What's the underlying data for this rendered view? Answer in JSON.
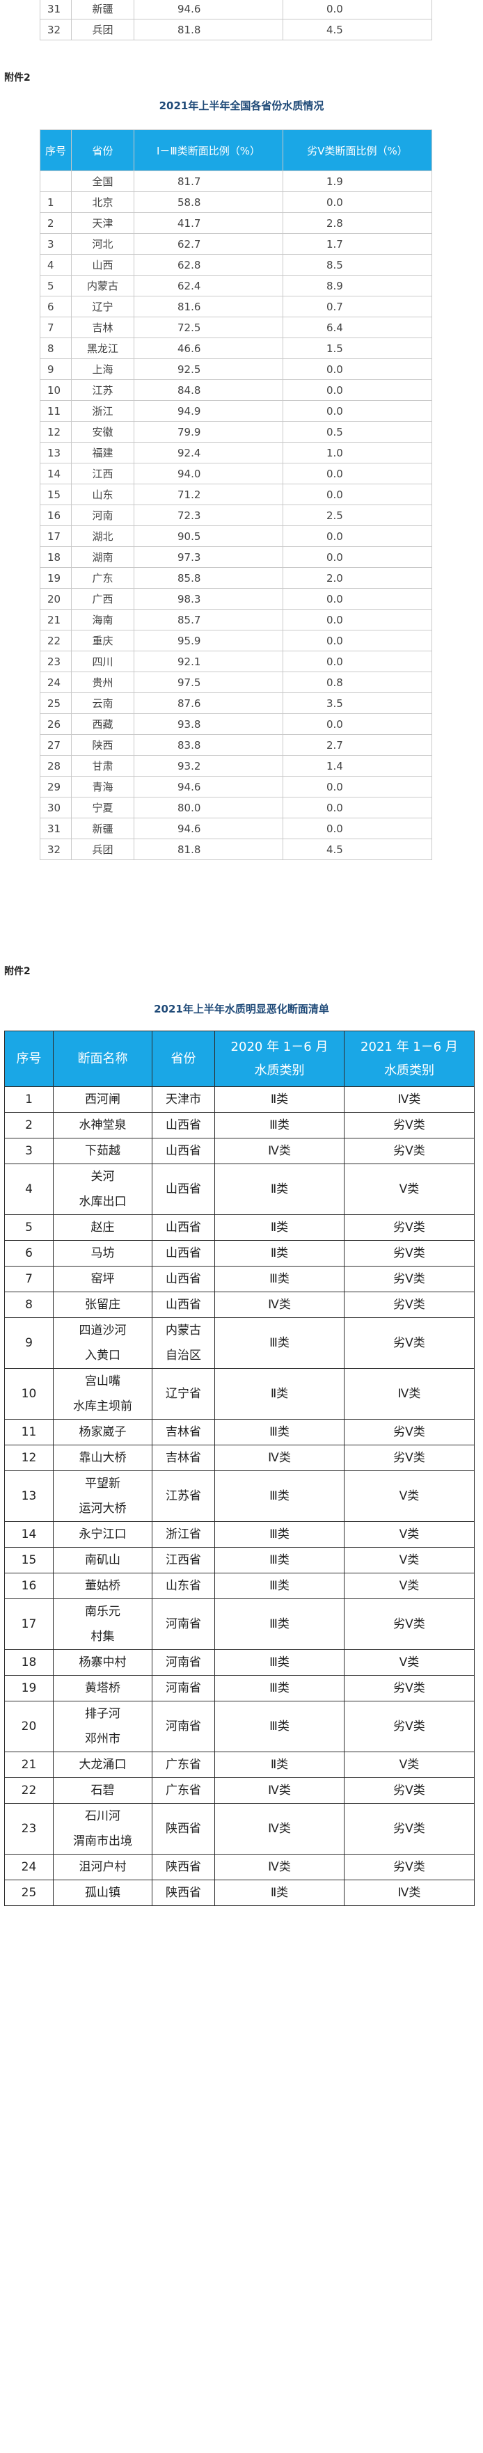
{
  "top_partial": {
    "rows": [
      [
        "31",
        "新疆",
        "94.6",
        "0.0"
      ],
      [
        "32",
        "兵团",
        "81.8",
        "4.5"
      ]
    ]
  },
  "section1": {
    "annex": "附件2",
    "title": "2021年上半年全国各省份水质情况",
    "headers": [
      "序号",
      "省份",
      "Ⅰ－Ⅲ类断面比例（%）",
      "劣Ⅴ类断面比例（%）"
    ],
    "rows": [
      [
        "",
        "全国",
        "81.7",
        "1.9"
      ],
      [
        "1",
        "北京",
        "58.8",
        "0.0"
      ],
      [
        "2",
        "天津",
        "41.7",
        "2.8"
      ],
      [
        "3",
        "河北",
        "62.7",
        "1.7"
      ],
      [
        "4",
        "山西",
        "62.8",
        "8.5"
      ],
      [
        "5",
        "内蒙古",
        "62.4",
        "8.9"
      ],
      [
        "6",
        "辽宁",
        "81.6",
        "0.7"
      ],
      [
        "7",
        "吉林",
        "72.5",
        "6.4"
      ],
      [
        "8",
        "黑龙江",
        "46.6",
        "1.5"
      ],
      [
        "9",
        "上海",
        "92.5",
        "0.0"
      ],
      [
        "10",
        "江苏",
        "84.8",
        "0.0"
      ],
      [
        "11",
        "浙江",
        "94.9",
        "0.0"
      ],
      [
        "12",
        "安徽",
        "79.9",
        "0.5"
      ],
      [
        "13",
        "福建",
        "92.4",
        "1.0"
      ],
      [
        "14",
        "江西",
        "94.0",
        "0.0"
      ],
      [
        "15",
        "山东",
        "71.2",
        "0.0"
      ],
      [
        "16",
        "河南",
        "72.3",
        "2.5"
      ],
      [
        "17",
        "湖北",
        "90.5",
        "0.0"
      ],
      [
        "18",
        "湖南",
        "97.3",
        "0.0"
      ],
      [
        "19",
        "广东",
        "85.8",
        "2.0"
      ],
      [
        "20",
        "广西",
        "98.3",
        "0.0"
      ],
      [
        "21",
        "海南",
        "85.7",
        "0.0"
      ],
      [
        "22",
        "重庆",
        "95.9",
        "0.0"
      ],
      [
        "23",
        "四川",
        "92.1",
        "0.0"
      ],
      [
        "24",
        "贵州",
        "97.5",
        "0.8"
      ],
      [
        "25",
        "云南",
        "87.6",
        "3.5"
      ],
      [
        "26",
        "西藏",
        "93.8",
        "0.0"
      ],
      [
        "27",
        "陕西",
        "83.8",
        "2.7"
      ],
      [
        "28",
        "甘肃",
        "93.2",
        "1.4"
      ],
      [
        "29",
        "青海",
        "94.6",
        "0.0"
      ],
      [
        "30",
        "宁夏",
        "80.0",
        "0.0"
      ],
      [
        "31",
        "新疆",
        "94.6",
        "0.0"
      ],
      [
        "32",
        "兵团",
        "81.8",
        "4.5"
      ]
    ]
  },
  "section2": {
    "annex": "附件2",
    "title": "2021年上半年水质明显恶化断面清单",
    "headers": {
      "no": "序号",
      "name": "断面名称",
      "province": "省份",
      "y2020": [
        "2020 年 1－6 月",
        "水质类别"
      ],
      "y2021": [
        "2021 年 1－6 月",
        "水质类别"
      ]
    },
    "rows": [
      {
        "no": "1",
        "name": [
          "西河闸"
        ],
        "province": [
          "天津市"
        ],
        "c2020": "Ⅱ类",
        "c2021": "Ⅳ类"
      },
      {
        "no": "2",
        "name": [
          "水神堂泉"
        ],
        "province": [
          "山西省"
        ],
        "c2020": "Ⅲ类",
        "c2021": "劣Ⅴ类"
      },
      {
        "no": "3",
        "name": [
          "下茹越"
        ],
        "province": [
          "山西省"
        ],
        "c2020": "Ⅳ类",
        "c2021": "劣Ⅴ类"
      },
      {
        "no": "4",
        "name": [
          "关河",
          "水库出口"
        ],
        "province": [
          "山西省"
        ],
        "c2020": "Ⅱ类",
        "c2021": "Ⅴ类"
      },
      {
        "no": "5",
        "name": [
          "赵庄"
        ],
        "province": [
          "山西省"
        ],
        "c2020": "Ⅱ类",
        "c2021": "劣Ⅴ类"
      },
      {
        "no": "6",
        "name": [
          "马坊"
        ],
        "province": [
          "山西省"
        ],
        "c2020": "Ⅱ类",
        "c2021": "劣Ⅴ类"
      },
      {
        "no": "7",
        "name": [
          "窑坪"
        ],
        "province": [
          "山西省"
        ],
        "c2020": "Ⅲ类",
        "c2021": "劣Ⅴ类"
      },
      {
        "no": "8",
        "name": [
          "张留庄"
        ],
        "province": [
          "山西省"
        ],
        "c2020": "Ⅳ类",
        "c2021": "劣Ⅴ类"
      },
      {
        "no": "9",
        "name": [
          "四道沙河",
          "入黄口"
        ],
        "province": [
          "内蒙古",
          "自治区"
        ],
        "c2020": "Ⅲ类",
        "c2021": "劣Ⅴ类"
      },
      {
        "no": "10",
        "name": [
          "宫山嘴",
          "水库主坝前"
        ],
        "province": [
          "辽宁省"
        ],
        "c2020": "Ⅱ类",
        "c2021": "Ⅳ类"
      },
      {
        "no": "11",
        "name": [
          "杨家崴子"
        ],
        "province": [
          "吉林省"
        ],
        "c2020": "Ⅲ类",
        "c2021": "劣Ⅴ类"
      },
      {
        "no": "12",
        "name": [
          "靠山大桥"
        ],
        "province": [
          "吉林省"
        ],
        "c2020": "Ⅳ类",
        "c2021": "劣Ⅴ类"
      },
      {
        "no": "13",
        "name": [
          "平望新",
          "运河大桥"
        ],
        "province": [
          "江苏省"
        ],
        "c2020": "Ⅲ类",
        "c2021": "Ⅴ类"
      },
      {
        "no": "14",
        "name": [
          "永宁江口"
        ],
        "province": [
          "浙江省"
        ],
        "c2020": "Ⅲ类",
        "c2021": "Ⅴ类"
      },
      {
        "no": "15",
        "name": [
          "南矶山"
        ],
        "province": [
          "江西省"
        ],
        "c2020": "Ⅲ类",
        "c2021": "Ⅴ类"
      },
      {
        "no": "16",
        "name": [
          "董姑桥"
        ],
        "province": [
          "山东省"
        ],
        "c2020": "Ⅲ类",
        "c2021": "Ⅴ类"
      },
      {
        "no": "17",
        "name": [
          "南乐元",
          "村集"
        ],
        "province": [
          "河南省"
        ],
        "c2020": "Ⅲ类",
        "c2021": "劣Ⅴ类"
      },
      {
        "no": "18",
        "name": [
          "杨寨中村"
        ],
        "province": [
          "河南省"
        ],
        "c2020": "Ⅲ类",
        "c2021": "Ⅴ类"
      },
      {
        "no": "19",
        "name": [
          "黄塔桥"
        ],
        "province": [
          "河南省"
        ],
        "c2020": "Ⅲ类",
        "c2021": "劣Ⅴ类"
      },
      {
        "no": "20",
        "name": [
          "排子河",
          "邓州市"
        ],
        "province": [
          "河南省"
        ],
        "c2020": "Ⅲ类",
        "c2021": "劣Ⅴ类"
      },
      {
        "no": "21",
        "name": [
          "大龙涌口"
        ],
        "province": [
          "广东省"
        ],
        "c2020": "Ⅱ类",
        "c2021": "Ⅴ类"
      },
      {
        "no": "22",
        "name": [
          "石碧"
        ],
        "province": [
          "广东省"
        ],
        "c2020": "Ⅳ类",
        "c2021": "劣Ⅴ类"
      },
      {
        "no": "23",
        "name": [
          "石川河",
          "渭南市出境"
        ],
        "province": [
          "陕西省"
        ],
        "c2020": "Ⅳ类",
        "c2021": "劣Ⅴ类"
      },
      {
        "no": "24",
        "name": [
          "沮河户村"
        ],
        "province": [
          "陕西省"
        ],
        "c2020": "Ⅳ类",
        "c2021": "劣Ⅴ类"
      },
      {
        "no": "25",
        "name": [
          "孤山镇"
        ],
        "province": [
          "陕西省"
        ],
        "c2020": "Ⅱ类",
        "c2021": "Ⅳ类"
      }
    ]
  }
}
